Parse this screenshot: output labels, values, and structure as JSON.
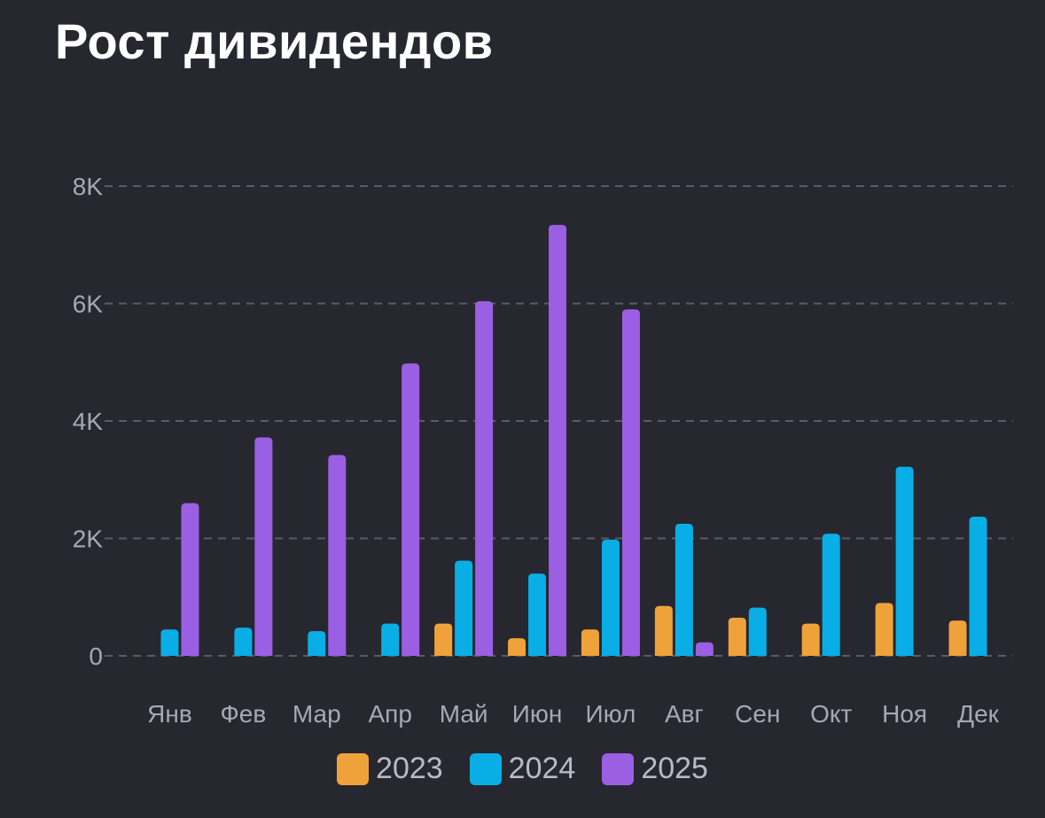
{
  "title": "Рост дивидендов",
  "chart_data": {
    "type": "bar",
    "title": "Рост дивидендов",
    "xlabel": "",
    "ylabel": "",
    "ylim": [
      0,
      8000
    ],
    "yticks": [
      0,
      2000,
      4000,
      6000,
      8000
    ],
    "ytick_labels": [
      "0",
      "2K",
      "4K",
      "6K",
      "8K"
    ],
    "grid": true,
    "legend_position": "bottom",
    "categories": [
      "Янв",
      "Фев",
      "Мар",
      "Апр",
      "Май",
      "Июн",
      "Июл",
      "Авг",
      "Сен",
      "Окт",
      "Ноя",
      "Дек"
    ],
    "series": [
      {
        "name": "2023",
        "color": "#f0a23a",
        "values": [
          0,
          0,
          0,
          0,
          550,
          300,
          450,
          850,
          650,
          550,
          900,
          600
        ]
      },
      {
        "name": "2024",
        "color": "#0aaee6",
        "values": [
          450,
          480,
          420,
          550,
          1620,
          1400,
          1980,
          2250,
          820,
          2080,
          3220,
          2370
        ]
      },
      {
        "name": "2025",
        "color": "#9b5fe3",
        "values": [
          2600,
          3720,
          3420,
          4980,
          6040,
          7340,
          5900,
          230,
          0,
          0,
          0,
          0
        ]
      }
    ]
  }
}
